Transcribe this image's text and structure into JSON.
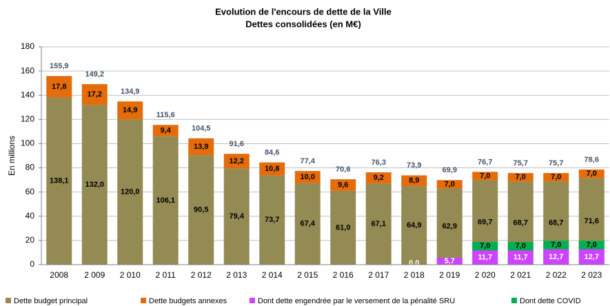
{
  "chart_data": {
    "type": "bar",
    "title": "Evolution de l'encours de dette de la Ville",
    "subtitle": "Dettes consolidées (en M€)",
    "y_label": "En millions",
    "categories": [
      "2008",
      "2 009",
      "2 010",
      "2 011",
      "2 012",
      "2 013",
      "2 014",
      "2 015",
      "2 016",
      "2 017",
      "2 018",
      "2 019",
      "2 020",
      "2 021",
      "2 022",
      "2 023"
    ],
    "series": [
      {
        "name": "Dette budget principal",
        "color": "#948a54",
        "values": [
          138.1,
          132.0,
          120.0,
          106.1,
          90.5,
          79.4,
          73.7,
          67.4,
          61.0,
          67.1,
          64.9,
          62.9,
          69.7,
          68.7,
          68.7,
          71.6
        ],
        "value_labels": [
          "138,1",
          "132,0",
          "120,0",
          "106,1",
          "90,5",
          "79,4",
          "73,7",
          "67,4",
          "61,0",
          "67,1",
          "64,9",
          "62,9",
          "69,7",
          "68,7",
          "68,7",
          "71,6"
        ]
      },
      {
        "name": "Dette budgets annexes",
        "color": "#e46c0a",
        "values": [
          17.8,
          17.2,
          14.9,
          9.4,
          13.9,
          12.2,
          10.8,
          10.0,
          9.6,
          9.2,
          8.9,
          7.0,
          7.0,
          7.0,
          7.0,
          7.0
        ],
        "value_labels": [
          "17,8",
          "17,2",
          "14,9",
          "9,4",
          "13,9",
          "12,2",
          "10,8",
          "10,0",
          "9,6",
          "9,2",
          "8,9",
          "7,0",
          "7,0",
          "7,0",
          "7,0",
          "7,0"
        ]
      },
      {
        "name": "Dont dette engendrée par le versement de la pénalité SRU",
        "color": "#cc44ff",
        "values": [
          null,
          null,
          null,
          null,
          null,
          null,
          null,
          null,
          null,
          null,
          0.0,
          5.7,
          11.7,
          11.7,
          12.7,
          12.7
        ],
        "value_labels": [
          null,
          null,
          null,
          null,
          null,
          null,
          null,
          null,
          null,
          null,
          "0,0",
          "5,7",
          "11,7",
          "11,7",
          "12,7",
          "12,7"
        ]
      },
      {
        "name": "Dont dette COVID",
        "color": "#00b050",
        "values": [
          null,
          null,
          null,
          null,
          null,
          null,
          null,
          null,
          null,
          null,
          null,
          null,
          7.0,
          7.0,
          7.0,
          7.0
        ],
        "value_labels": [
          null,
          null,
          null,
          null,
          null,
          null,
          null,
          null,
          null,
          null,
          null,
          null,
          "7,0",
          "7,0",
          "7,0",
          "7,0"
        ]
      }
    ],
    "totals": {
      "values": [
        155.9,
        149.2,
        134.9,
        115.6,
        104.5,
        91.6,
        84.6,
        77.4,
        70.6,
        76.3,
        73.9,
        69.9,
        76.7,
        75.7,
        75.7,
        78.6
      ],
      "value_labels": [
        "155,9",
        "149,2",
        "134,9",
        "115,6",
        "104,5",
        "91,6",
        "84,6",
        "77,4",
        "70,6",
        "76,3",
        "73,9",
        "69,9",
        "76,7",
        "75,7",
        "75,7",
        "78,6"
      ]
    },
    "ylim": [
      0,
      180
    ],
    "yticks": [
      0,
      20,
      40,
      60,
      80,
      100,
      120,
      140,
      160,
      180
    ],
    "grid": true,
    "legend": "bottom"
  }
}
